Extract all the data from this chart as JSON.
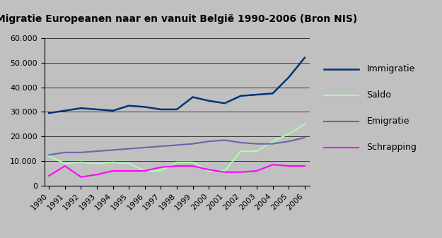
{
  "title": "Migratie Europeanen naar en vanuit België 1990-2006 (Bron NIS)",
  "years": [
    1990,
    1991,
    1992,
    1993,
    1994,
    1995,
    1996,
    1997,
    1998,
    1999,
    2000,
    2001,
    2002,
    2003,
    2004,
    2005,
    2006
  ],
  "immigratie": [
    29500,
    30500,
    31500,
    31000,
    30500,
    32500,
    32000,
    31000,
    31000,
    36000,
    34500,
    33500,
    36500,
    37000,
    37500,
    44000,
    52000
  ],
  "saldo": [
    12000,
    9000,
    9500,
    9000,
    9500,
    9000,
    6000,
    6000,
    9500,
    9500,
    6000,
    6000,
    14000,
    14000,
    18000,
    21000,
    25000
  ],
  "emigratie": [
    12500,
    13500,
    13500,
    14000,
    14500,
    15000,
    15500,
    16000,
    16500,
    17000,
    18000,
    18500,
    17500,
    17000,
    17000,
    18000,
    19500
  ],
  "schrapping": [
    4000,
    8000,
    3500,
    4500,
    6000,
    6000,
    6000,
    7500,
    8000,
    8000,
    6500,
    5500,
    5500,
    6000,
    8500,
    8000,
    8000
  ],
  "line_colors": {
    "immigratie": "#003377",
    "saldo": "#aaffaa",
    "emigratie": "#6666aa",
    "schrapping": "#ff00ff"
  },
  "legend_labels": [
    "Immigratie",
    "Saldo",
    "Emigratie",
    "Schrapping"
  ],
  "ylim": [
    0,
    60000
  ],
  "yticks": [
    0,
    10000,
    20000,
    30000,
    40000,
    50000,
    60000
  ],
  "ytick_labels": [
    "0",
    "10.000",
    "20.000",
    "30.000",
    "40.000",
    "50.000",
    "60.000"
  ],
  "bg_color_outer": "#c0c0c0",
  "bg_color_plot": "#c0c0c0",
  "grid_color": "#000000",
  "title_fontsize": 10,
  "tick_fontsize": 8,
  "legend_fontsize": 9
}
